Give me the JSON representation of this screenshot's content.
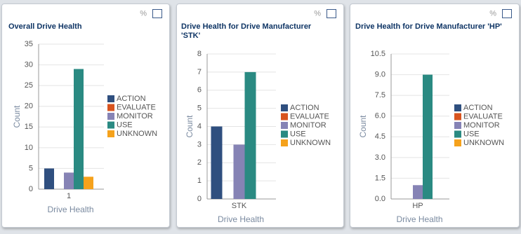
{
  "chart_data": [
    {
      "type": "bar",
      "title": "Overall Drive Health",
      "y_label": "Count",
      "x_label": "Drive Health",
      "categories": [
        "1"
      ],
      "series": [
        {
          "name": "ACTION",
          "color": "#2f4f7f",
          "values": [
            5
          ]
        },
        {
          "name": "EVALUATE",
          "color": "#d8541f",
          "values": [
            0
          ]
        },
        {
          "name": "MONITOR",
          "color": "#8683b5",
          "values": [
            4
          ]
        },
        {
          "name": "USE",
          "color": "#2a8a82",
          "values": [
            29
          ]
        },
        {
          "name": "UNKNOWN",
          "color": "#f5a21c",
          "values": [
            3
          ]
        }
      ],
      "ylim": [
        0,
        35
      ],
      "yticks": [
        0,
        5,
        10,
        15,
        20,
        25,
        30,
        35
      ],
      "grid": true
    },
    {
      "type": "bar",
      "title": "Drive Health for Drive Manufacturer 'STK'",
      "y_label": "Count",
      "x_label": "Drive Health",
      "categories": [
        "STK"
      ],
      "series": [
        {
          "name": "ACTION",
          "color": "#2f4f7f",
          "values": [
            4
          ]
        },
        {
          "name": "EVALUATE",
          "color": "#d8541f",
          "values": [
            0
          ]
        },
        {
          "name": "MONITOR",
          "color": "#8683b5",
          "values": [
            3
          ]
        },
        {
          "name": "USE",
          "color": "#2a8a82",
          "values": [
            7
          ]
        },
        {
          "name": "UNKNOWN",
          "color": "#f5a21c",
          "values": [
            0
          ]
        }
      ],
      "ylim": [
        0,
        8
      ],
      "yticks": [
        0,
        1,
        2,
        3,
        4,
        5,
        6,
        7,
        8
      ],
      "grid": true
    },
    {
      "type": "bar",
      "title": "Drive Health for Drive Manufacturer 'HP'",
      "y_label": "Count",
      "x_label": "Drive Health",
      "categories": [
        "HP"
      ],
      "series": [
        {
          "name": "ACTION",
          "color": "#2f4f7f",
          "values": [
            0
          ]
        },
        {
          "name": "EVALUATE",
          "color": "#d8541f",
          "values": [
            0
          ]
        },
        {
          "name": "MONITOR",
          "color": "#8683b5",
          "values": [
            1
          ]
        },
        {
          "name": "USE",
          "color": "#2a8a82",
          "values": [
            9
          ]
        },
        {
          "name": "UNKNOWN",
          "color": "#f5a21c",
          "values": [
            0
          ]
        }
      ],
      "ylim": [
        0,
        10.5
      ],
      "yticks": [
        {
          "value": 0,
          "label": "0.0"
        },
        1.5,
        {
          "value": 3,
          "label": "3.0"
        },
        4.5,
        {
          "value": 6,
          "label": "6.0"
        },
        7.5,
        {
          "value": 9,
          "label": "9.0"
        },
        10.5
      ],
      "grid": true
    }
  ]
}
